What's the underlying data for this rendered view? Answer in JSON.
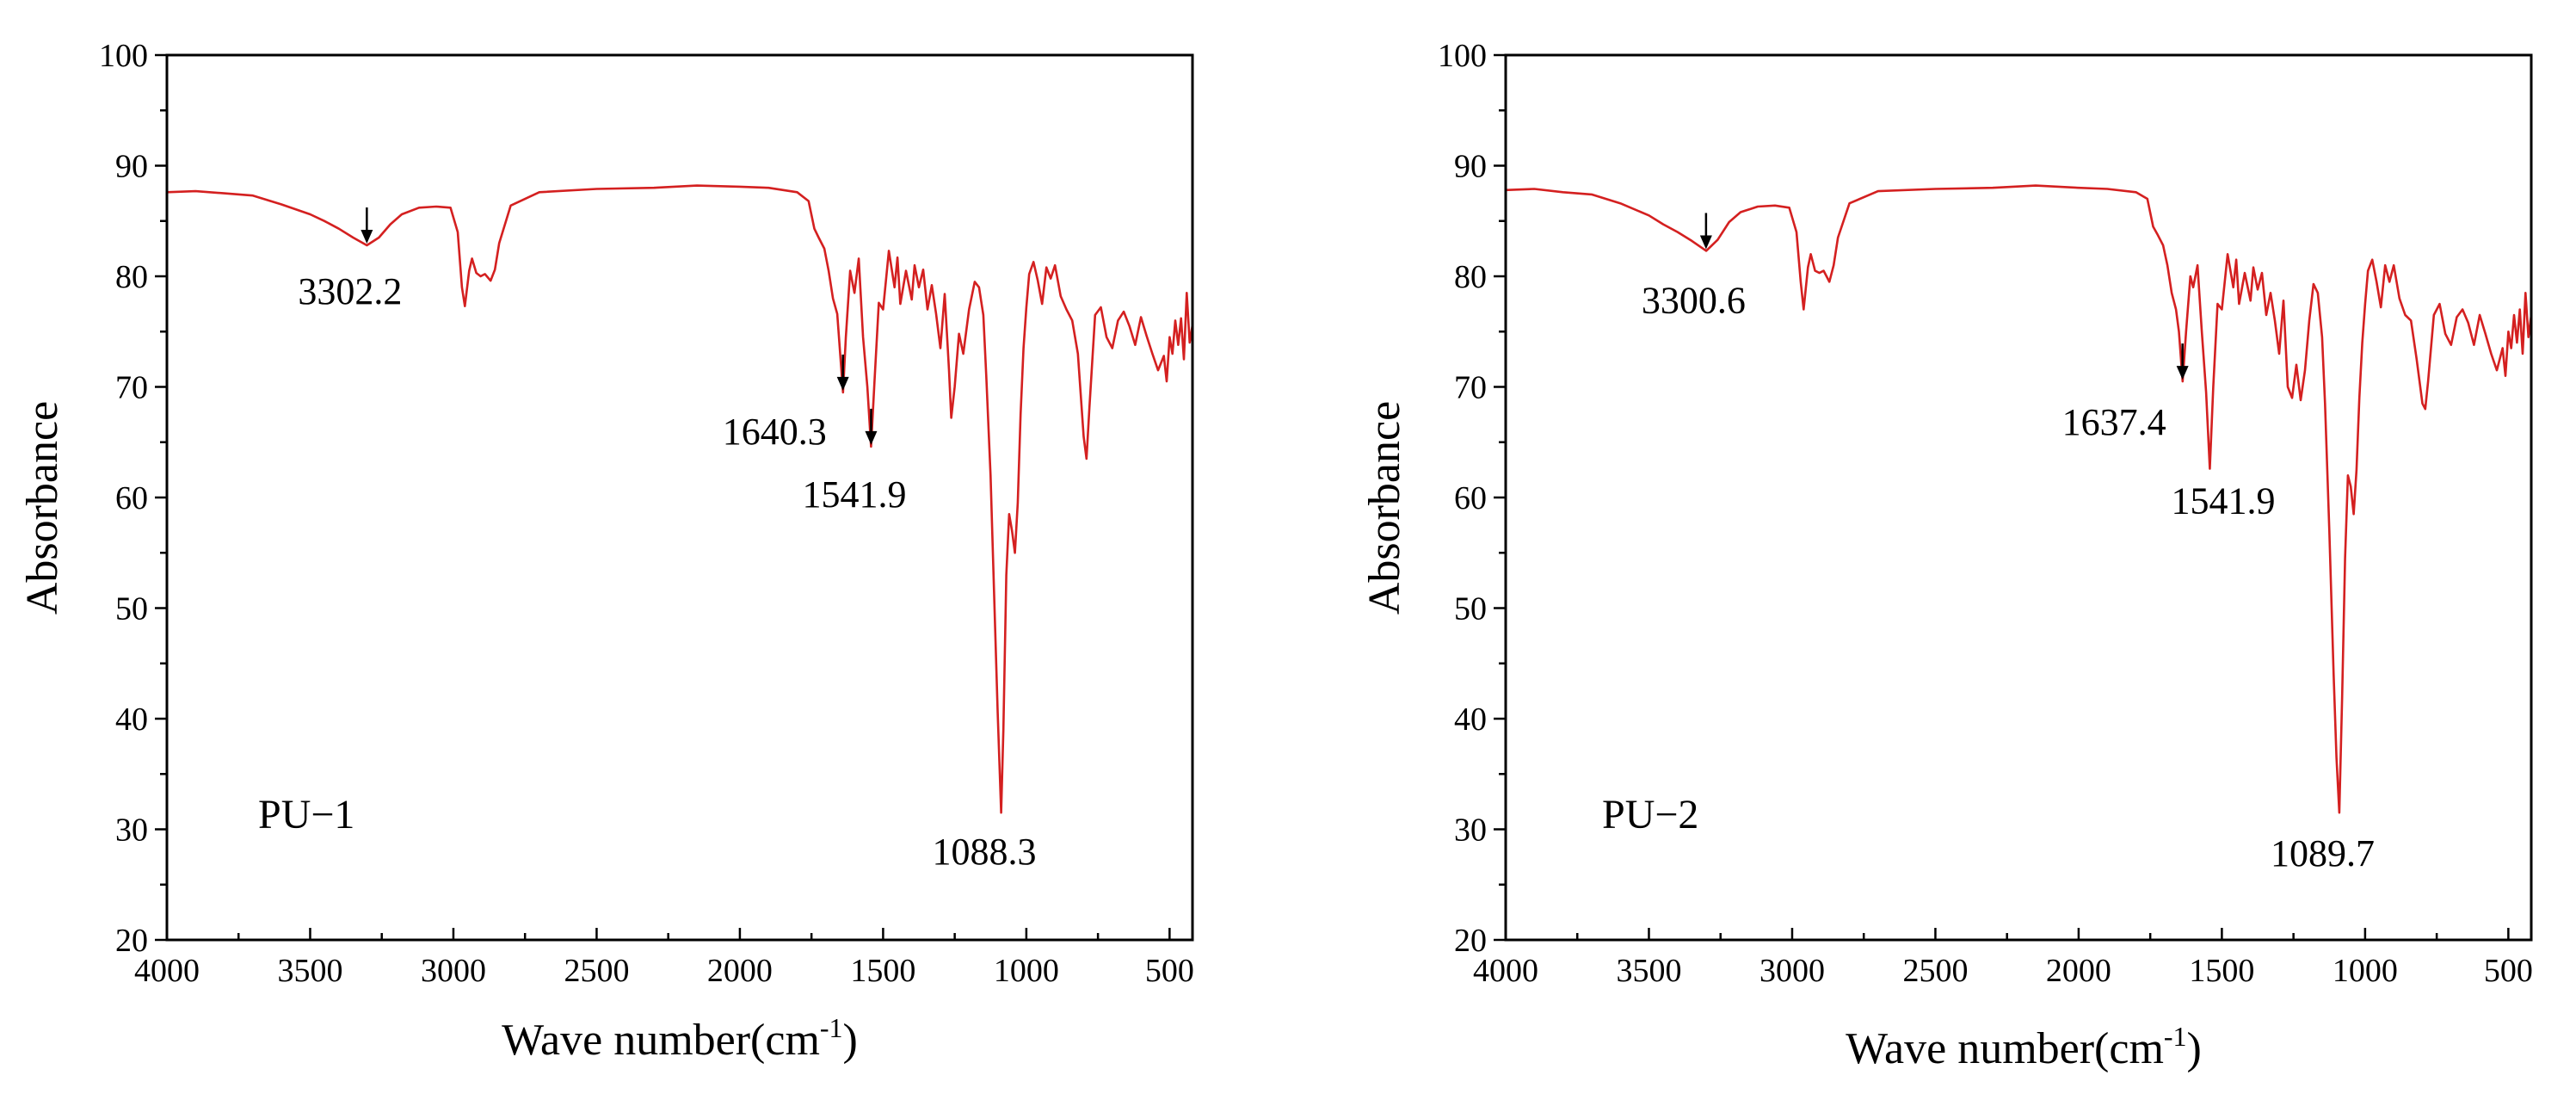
{
  "colors": {
    "spectrum": "#d42020",
    "axis": "#000000",
    "background": "#ffffff"
  },
  "chart_data": [
    {
      "type": "line",
      "panel_label": "PU−1",
      "xlabel": "Wave number(cm",
      "xlabel_sup": "-1",
      "xlabel_end": ")",
      "ylabel": "Absorbance",
      "xlim": [
        4000,
        420
      ],
      "ylim": [
        20,
        100
      ],
      "x_ticks": [
        4000,
        3500,
        3000,
        2500,
        2000,
        1500,
        1000,
        500
      ],
      "x_tick_labels": [
        "4000",
        "3500",
        "3000",
        "2500",
        "2000",
        "1500",
        "1000",
        "500"
      ],
      "y_ticks": [
        20,
        30,
        40,
        50,
        60,
        70,
        80,
        90,
        100
      ],
      "y_tick_labels": [
        "20",
        "30",
        "40",
        "50",
        "60",
        "70",
        "80",
        "90",
        "100"
      ],
      "series": [
        {
          "name": "PU-1",
          "x": [
            4000,
            3900,
            3800,
            3700,
            3600,
            3500,
            3450,
            3400,
            3350,
            3302,
            3260,
            3220,
            3180,
            3120,
            3060,
            3010,
            2985,
            2970,
            2960,
            2945,
            2935,
            2920,
            2905,
            2890,
            2870,
            2855,
            2840,
            2800,
            2700,
            2500,
            2300,
            2150,
            2000,
            1900,
            1800,
            1760,
            1740,
            1725,
            1705,
            1690,
            1675,
            1660,
            1650,
            1640,
            1630,
            1615,
            1600,
            1585,
            1570,
            1555,
            1542,
            1530,
            1515,
            1500,
            1480,
            1460,
            1450,
            1440,
            1420,
            1400,
            1390,
            1375,
            1360,
            1345,
            1330,
            1315,
            1300,
            1285,
            1270,
            1262,
            1250,
            1235,
            1220,
            1200,
            1180,
            1165,
            1150,
            1140,
            1125,
            1110,
            1100,
            1088,
            1080,
            1070,
            1060,
            1050,
            1040,
            1030,
            1020,
            1010,
            1000,
            990,
            975,
            960,
            945,
            930,
            915,
            900,
            880,
            860,
            840,
            820,
            800,
            790,
            780,
            760,
            740,
            720,
            700,
            680,
            660,
            640,
            620,
            600,
            580,
            560,
            540,
            520,
            510,
            500,
            490,
            480,
            470,
            460,
            450,
            440,
            430,
            420
          ],
          "y": [
            87.6,
            87.7,
            87.5,
            87.3,
            86.5,
            85.6,
            85.0,
            84.3,
            83.5,
            82.8,
            83.5,
            84.7,
            85.6,
            86.2,
            86.3,
            86.2,
            84.0,
            79.0,
            77.3,
            80.5,
            81.6,
            80.3,
            80.0,
            80.2,
            79.6,
            80.6,
            83.0,
            86.4,
            87.6,
            87.9,
            88.0,
            88.2,
            88.1,
            88.0,
            87.6,
            86.8,
            84.3,
            83.5,
            82.5,
            80.5,
            78.0,
            76.6,
            73.0,
            69.5,
            74.5,
            80.5,
            78.5,
            81.6,
            74.5,
            70.0,
            64.6,
            70.5,
            77.6,
            77.0,
            82.3,
            79.0,
            81.7,
            77.5,
            80.5,
            77.9,
            81.0,
            79.0,
            80.6,
            77.0,
            79.2,
            76.6,
            73.5,
            78.4,
            71.5,
            67.2,
            70.0,
            74.8,
            73.0,
            77.0,
            79.5,
            79.0,
            76.5,
            71.0,
            62.0,
            49.0,
            40.5,
            31.5,
            39.0,
            53.0,
            58.5,
            57.0,
            55.0,
            59.5,
            67.5,
            73.5,
            77.2,
            80.2,
            81.3,
            79.6,
            77.5,
            80.8,
            79.8,
            81.0,
            78.2,
            77.0,
            76.0,
            73.0,
            65.5,
            63.5,
            68.0,
            76.5,
            77.2,
            74.5,
            73.5,
            76.0,
            76.8,
            75.5,
            73.8,
            76.3,
            74.6,
            73.0,
            71.5,
            72.8,
            70.5,
            74.5,
            73.0,
            76.0,
            73.8,
            76.2,
            72.5,
            78.5,
            74.0,
            75.6
          ]
        }
      ],
      "annotations": [
        {
          "text": "3302.2",
          "x": 3302.2,
          "y": 82.8,
          "arrow": true
        },
        {
          "text": "1640.3",
          "x": 1640.3,
          "y": 69.5,
          "arrow": true
        },
        {
          "text": "1541.9",
          "x": 1541.9,
          "y": 64.6,
          "arrow": true
        },
        {
          "text": "1088.3",
          "x": 1088.3,
          "y": 31.5,
          "arrow": false
        }
      ]
    },
    {
      "type": "line",
      "panel_label": "PU−2",
      "xlabel": "Wave number(cm",
      "xlabel_sup": "-1",
      "xlabel_end": ")",
      "ylabel": "Absorbance",
      "xlim": [
        4000,
        420
      ],
      "ylim": [
        20,
        100
      ],
      "x_ticks": [
        4000,
        3500,
        3000,
        2500,
        2000,
        1500,
        1000,
        500
      ],
      "x_tick_labels": [
        "4000",
        "3500",
        "3000",
        "2500",
        "2000",
        "1500",
        "1000",
        "500"
      ],
      "y_ticks": [
        20,
        30,
        40,
        50,
        60,
        70,
        80,
        90,
        100
      ],
      "y_tick_labels": [
        "20",
        "30",
        "40",
        "50",
        "60",
        "70",
        "80",
        "90",
        "100"
      ],
      "series": [
        {
          "name": "PU-2",
          "x": [
            4000,
            3900,
            3800,
            3700,
            3600,
            3500,
            3450,
            3400,
            3350,
            3300,
            3260,
            3220,
            3180,
            3120,
            3060,
            3010,
            2985,
            2970,
            2960,
            2945,
            2935,
            2920,
            2905,
            2890,
            2870,
            2855,
            2840,
            2800,
            2700,
            2500,
            2300,
            2150,
            2000,
            1900,
            1800,
            1760,
            1740,
            1725,
            1705,
            1690,
            1675,
            1660,
            1650,
            1637,
            1625,
            1610,
            1600,
            1585,
            1570,
            1555,
            1542,
            1530,
            1515,
            1500,
            1480,
            1460,
            1450,
            1440,
            1420,
            1400,
            1390,
            1375,
            1360,
            1345,
            1330,
            1315,
            1300,
            1285,
            1270,
            1255,
            1240,
            1225,
            1210,
            1195,
            1180,
            1165,
            1150,
            1140,
            1125,
            1110,
            1100,
            1090,
            1080,
            1070,
            1060,
            1050,
            1040,
            1030,
            1020,
            1010,
            1000,
            990,
            975,
            960,
            945,
            930,
            915,
            900,
            880,
            860,
            840,
            820,
            800,
            790,
            780,
            760,
            740,
            720,
            700,
            680,
            660,
            640,
            620,
            600,
            580,
            560,
            540,
            520,
            510,
            500,
            490,
            480,
            470,
            460,
            450,
            440,
            430,
            420
          ],
          "y": [
            87.8,
            87.9,
            87.6,
            87.4,
            86.6,
            85.5,
            84.7,
            84.0,
            83.2,
            82.3,
            83.3,
            84.9,
            85.8,
            86.3,
            86.4,
            86.2,
            84.0,
            79.5,
            77.0,
            80.8,
            82.0,
            80.5,
            80.3,
            80.5,
            79.5,
            81.0,
            83.5,
            86.6,
            87.7,
            87.9,
            88.0,
            88.2,
            88.0,
            87.9,
            87.6,
            87.0,
            84.5,
            83.8,
            82.8,
            81.0,
            78.5,
            77.0,
            75.0,
            70.5,
            75.0,
            80.0,
            79.0,
            81.0,
            75.0,
            69.5,
            62.6,
            70.0,
            77.5,
            77.0,
            82.0,
            79.0,
            81.5,
            77.5,
            80.3,
            77.8,
            80.8,
            78.8,
            80.3,
            76.5,
            78.5,
            76.0,
            73.0,
            77.8,
            70.0,
            69.0,
            72.0,
            68.8,
            71.5,
            76.0,
            79.3,
            78.5,
            74.5,
            68.5,
            57.0,
            44.0,
            36.5,
            31.5,
            42.0,
            54.5,
            62.0,
            61.0,
            58.5,
            62.5,
            69.0,
            74.0,
            77.5,
            80.5,
            81.5,
            79.5,
            77.2,
            81.0,
            79.5,
            81.0,
            78.0,
            76.5,
            76.0,
            72.5,
            68.5,
            68.0,
            70.5,
            76.5,
            77.5,
            74.8,
            73.8,
            76.3,
            77.0,
            75.8,
            73.8,
            76.5,
            74.8,
            73.0,
            71.5,
            73.5,
            71.0,
            75.0,
            73.5,
            76.5,
            74.0,
            77.0,
            73.0,
            78.5,
            74.5,
            76.5
          ]
        }
      ],
      "annotations": [
        {
          "text": "3300.6",
          "x": 3300.6,
          "y": 82.3,
          "arrow": true
        },
        {
          "text": "1637.4",
          "x": 1637.4,
          "y": 70.5,
          "arrow": true
        },
        {
          "text": "1541.9",
          "x": 1541.9,
          "y": 62.6,
          "arrow": false
        },
        {
          "text": "1089.7",
          "x": 1089.7,
          "y": 31.5,
          "arrow": false
        }
      ]
    }
  ]
}
